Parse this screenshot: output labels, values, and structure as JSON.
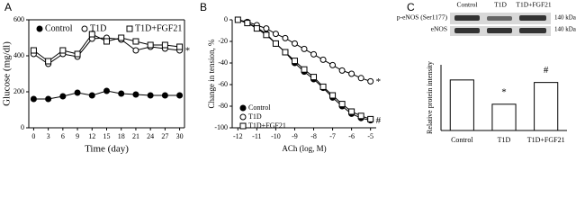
{
  "chart_data": [
    {
      "type": "line",
      "panel": "A",
      "xlabel": "Time (day)",
      "ylabel": "Glucose (mg/dl)",
      "x": [
        0,
        3,
        6,
        9,
        12,
        15,
        18,
        21,
        24,
        27,
        30
      ],
      "xlim": [
        -1,
        31
      ],
      "xticks": [
        0,
        3,
        6,
        9,
        12,
        15,
        18,
        21,
        24,
        27,
        30
      ],
      "ylim": [
        0,
        600
      ],
      "yticks": [
        0,
        200,
        400,
        600
      ],
      "legend": "top",
      "series": [
        {
          "name": "Control",
          "color": "#000000",
          "marker": "circle-filled",
          "values": [
            160,
            160,
            175,
            195,
            180,
            205,
            190,
            185,
            180,
            180,
            180
          ]
        },
        {
          "name": "T1D",
          "color": "#000000",
          "marker": "circle-open",
          "values": [
            410,
            355,
            410,
            395,
            495,
            500,
            490,
            430,
            450,
            440,
            430
          ],
          "annotation": "*"
        },
        {
          "name": "T1D+FGF21",
          "color": "#000000",
          "marker": "square-open",
          "values": [
            430,
            370,
            430,
            410,
            520,
            480,
            500,
            480,
            460,
            460,
            450
          ]
        }
      ]
    },
    {
      "type": "line",
      "panel": "B",
      "xlabel": "ACh (log, M)",
      "ylabel": "Change in tension, %",
      "x": [
        -12,
        -11.5,
        -11,
        -10.5,
        -10,
        -9.5,
        -9,
        -8.5,
        -8,
        -7.5,
        -7,
        -6.5,
        -6,
        -5.5,
        -5
      ],
      "xlim": [
        -12.3,
        -4.7
      ],
      "xticks": [
        -12,
        -11,
        -10,
        -9,
        -8,
        -7,
        -6,
        -5
      ],
      "ylim": [
        -100,
        0
      ],
      "yticks": [
        0,
        -20,
        -40,
        -60,
        -80,
        -100
      ],
      "legend": "lower left",
      "series": [
        {
          "name": "Control",
          "color": "#000000",
          "marker": "circle-filled",
          "values": [
            0,
            -3,
            -7,
            -13,
            -22,
            -30,
            -40,
            -48,
            -55,
            -63,
            -72,
            -80,
            -87,
            -91,
            -93
          ],
          "annotation": "#"
        },
        {
          "name": "T1D",
          "color": "#000000",
          "marker": "circle-open",
          "values": [
            0,
            -2,
            -5,
            -8,
            -13,
            -17,
            -22,
            -27,
            -32,
            -37,
            -42,
            -47,
            -50,
            -54,
            -57
          ],
          "annotation": "*"
        },
        {
          "name": "T1D+FGF21",
          "color": "#000000",
          "marker": "square-open",
          "values": [
            0,
            -3,
            -8,
            -14,
            -22,
            -30,
            -38,
            -46,
            -53,
            -62,
            -70,
            -78,
            -85,
            -89,
            -92
          ]
        }
      ]
    },
    {
      "type": "bar",
      "panel": "C",
      "ylabel": "Relative protein intensity",
      "categories": [
        "Control",
        "T1D",
        "T1D+FGF21"
      ],
      "values": [
        1.0,
        0.52,
        0.95
      ],
      "value_annotations": [
        null,
        "*",
        "#"
      ],
      "ylim": [
        0,
        1.3
      ],
      "color": "#ffffff",
      "blot": {
        "lanes": [
          "Control",
          "T1D",
          "T1D+FGF21"
        ],
        "rows": [
          "p-eNOS (Ser1177)",
          "eNOS"
        ],
        "sizes": [
          "140 kDa",
          "140 kDa"
        ]
      }
    }
  ]
}
